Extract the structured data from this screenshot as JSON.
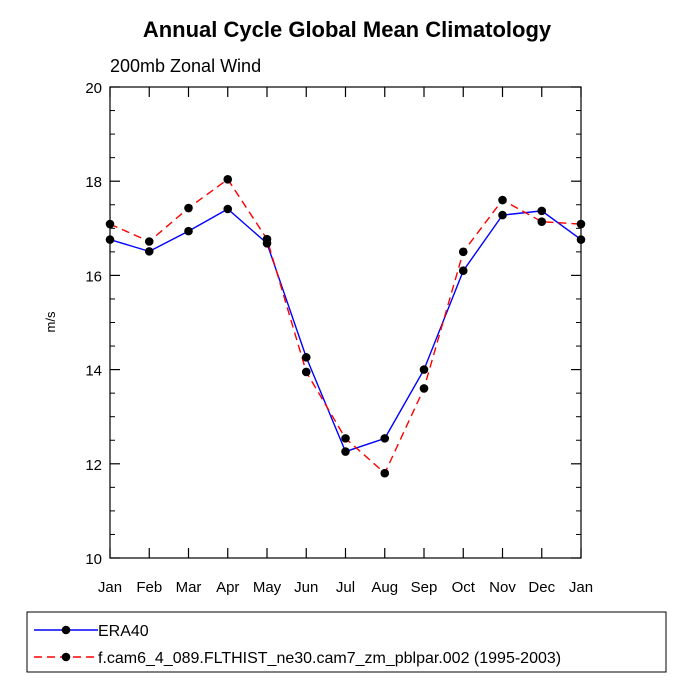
{
  "chart_data": {
    "type": "line",
    "title": "Annual Cycle Global Mean Climatology",
    "subtitle": "200mb Zonal Wind",
    "xlabel": "",
    "ylabel": "m/s",
    "ylim": [
      10,
      20
    ],
    "yticks": [
      "10",
      "12",
      "14",
      "16",
      "18",
      "20"
    ],
    "categories": [
      "Jan",
      "Feb",
      "Mar",
      "Apr",
      "May",
      "Jun",
      "Jul",
      "Aug",
      "Sep",
      "Oct",
      "Nov",
      "Dec",
      "Jan"
    ],
    "grid": false,
    "legend_position": "bottom",
    "series": [
      {
        "name": "ERA40",
        "color": "#0000ff",
        "line_style": "solid",
        "values": [
          16.76,
          16.51,
          16.94,
          17.41,
          16.68,
          14.26,
          12.26,
          12.54,
          14.0,
          16.1,
          17.28,
          17.37,
          16.76
        ]
      },
      {
        "name": "f.cam6_4_089.FLTHIST_ne30.cam7_zm_pblpar.002 (1995-2003)",
        "color": "#ff0000",
        "line_style": "dashed",
        "values": [
          17.09,
          16.72,
          17.43,
          18.04,
          16.77,
          13.95,
          12.54,
          11.8,
          13.6,
          16.5,
          17.6,
          17.14,
          17.09
        ]
      }
    ]
  }
}
